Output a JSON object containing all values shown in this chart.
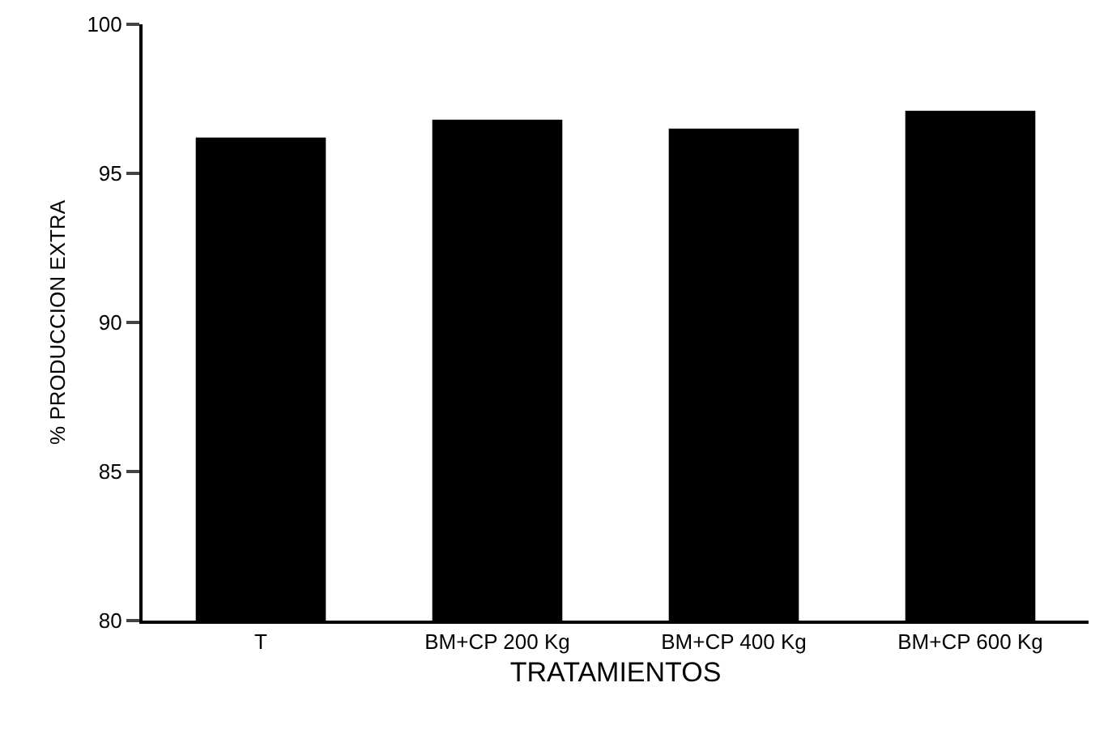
{
  "chart_data": {
    "type": "bar",
    "xlabel": "TRATAMIENTOS",
    "ylabel": "% PRODUCCION EXTRA",
    "categories": [
      "T",
      "BM+CP 200 Kg",
      "BM+CP 400 Kg",
      "BM+CP 600 Kg"
    ],
    "values": [
      96.2,
      96.8,
      96.5,
      97.1
    ],
    "color": "#000000",
    "ylim": [
      80,
      100
    ],
    "yticks": [
      80,
      85,
      90,
      95,
      100
    ],
    "grid": false
  }
}
